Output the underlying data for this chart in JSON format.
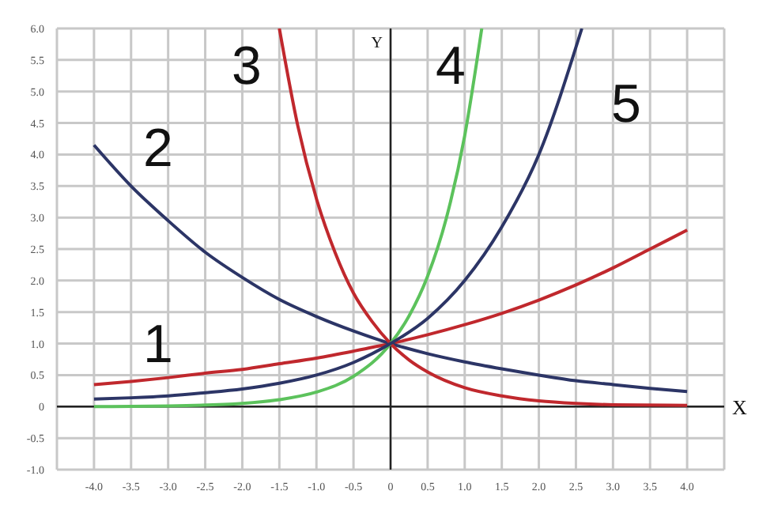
{
  "chart_data": {
    "type": "line",
    "xlabel": "X",
    "ylabel": "Y",
    "xlim": [
      -4.5,
      4.5
    ],
    "ylim": [
      -1.0,
      6.0
    ],
    "xticks": [
      {
        "value": -4,
        "label": "-4.0"
      },
      -3.5,
      {
        "value": -3,
        "label": "-3.0"
      },
      -2.5,
      {
        "value": -2,
        "label": "-2.0"
      },
      -1.5,
      {
        "value": -1,
        "label": "-1.0"
      },
      -0.5,
      0,
      0.5,
      {
        "value": 1,
        "label": "1.0"
      },
      1.5,
      {
        "value": 2,
        "label": "2.0"
      },
      2.5,
      {
        "value": 3,
        "label": "3.0"
      },
      3.5,
      {
        "value": 4,
        "label": "4.0"
      }
    ],
    "yticks": [
      {
        "value": -1,
        "label": "-1.0"
      },
      -0.5,
      0,
      0.5,
      {
        "value": 1,
        "label": "1.0"
      },
      1.5,
      {
        "value": 2,
        "label": "2.0"
      },
      2.5,
      {
        "value": 3,
        "label": "3.0"
      },
      3.5,
      {
        "value": 4,
        "label": "4.0"
      },
      4.5,
      {
        "value": 5,
        "label": "5.0"
      },
      5.5,
      {
        "value": 6,
        "label": "6.0"
      }
    ],
    "grid": true,
    "marker": "none",
    "line_style": "solid",
    "series": [
      {
        "color": "#c0282d",
        "x": [
          -4,
          -3.5,
          -3,
          -2.5,
          -2,
          -1.5,
          -1,
          -0.5,
          0,
          0.5,
          1,
          1.5,
          2,
          2.5,
          3,
          3.5,
          4
        ],
        "values": [
          0.35,
          0.4,
          0.46,
          0.53,
          0.59,
          0.68,
          0.77,
          0.88,
          1.0,
          1.14,
          1.3,
          1.48,
          1.69,
          1.93,
          2.2,
          2.5,
          2.8
        ]
      },
      {
        "color": "#2c3566",
        "x": [
          -4,
          -3.5,
          -3,
          -2.5,
          -2,
          -1.5,
          -1,
          -0.5,
          0,
          0.5,
          1,
          1.5,
          2,
          2.5,
          3,
          3.5,
          4
        ],
        "values": [
          4.15,
          3.5,
          2.95,
          2.45,
          2.05,
          1.7,
          1.43,
          1.2,
          1.0,
          0.84,
          0.71,
          0.6,
          0.5,
          0.41,
          0.35,
          0.29,
          0.24
        ]
      },
      {
        "color": "#c0282d",
        "x": [
          -1.5,
          -1.25,
          -1,
          -0.75,
          -0.5,
          -0.25,
          0,
          0.25,
          0.5,
          1,
          1.5,
          2,
          2.5,
          3,
          4
        ],
        "values": [
          6.0,
          4.45,
          3.3,
          2.45,
          1.8,
          1.35,
          1.0,
          0.74,
          0.55,
          0.3,
          0.17,
          0.09,
          0.05,
          0.03,
          0.02
        ]
      },
      {
        "color": "#5cc25c",
        "x": [
          -4,
          -3,
          -2,
          -1.5,
          -1,
          -0.5,
          0,
          0.25,
          0.5,
          0.75,
          1,
          1.23
        ],
        "values": [
          0.0,
          0.01,
          0.05,
          0.11,
          0.23,
          0.48,
          1.0,
          1.44,
          2.07,
          2.98,
          4.3,
          6.0
        ]
      },
      {
        "color": "#2c3566",
        "x": [
          -4,
          -3.5,
          -3,
          -2.5,
          -2,
          -1.5,
          -1,
          -0.5,
          0,
          0.5,
          1,
          1.5,
          2,
          2.58
        ],
        "values": [
          0.12,
          0.14,
          0.17,
          0.22,
          0.28,
          0.37,
          0.5,
          0.7,
          1.0,
          1.4,
          2.0,
          2.85,
          4.0,
          6.0
        ]
      }
    ],
    "annotations": [
      "1",
      "2",
      "3",
      "4",
      "5"
    ]
  }
}
